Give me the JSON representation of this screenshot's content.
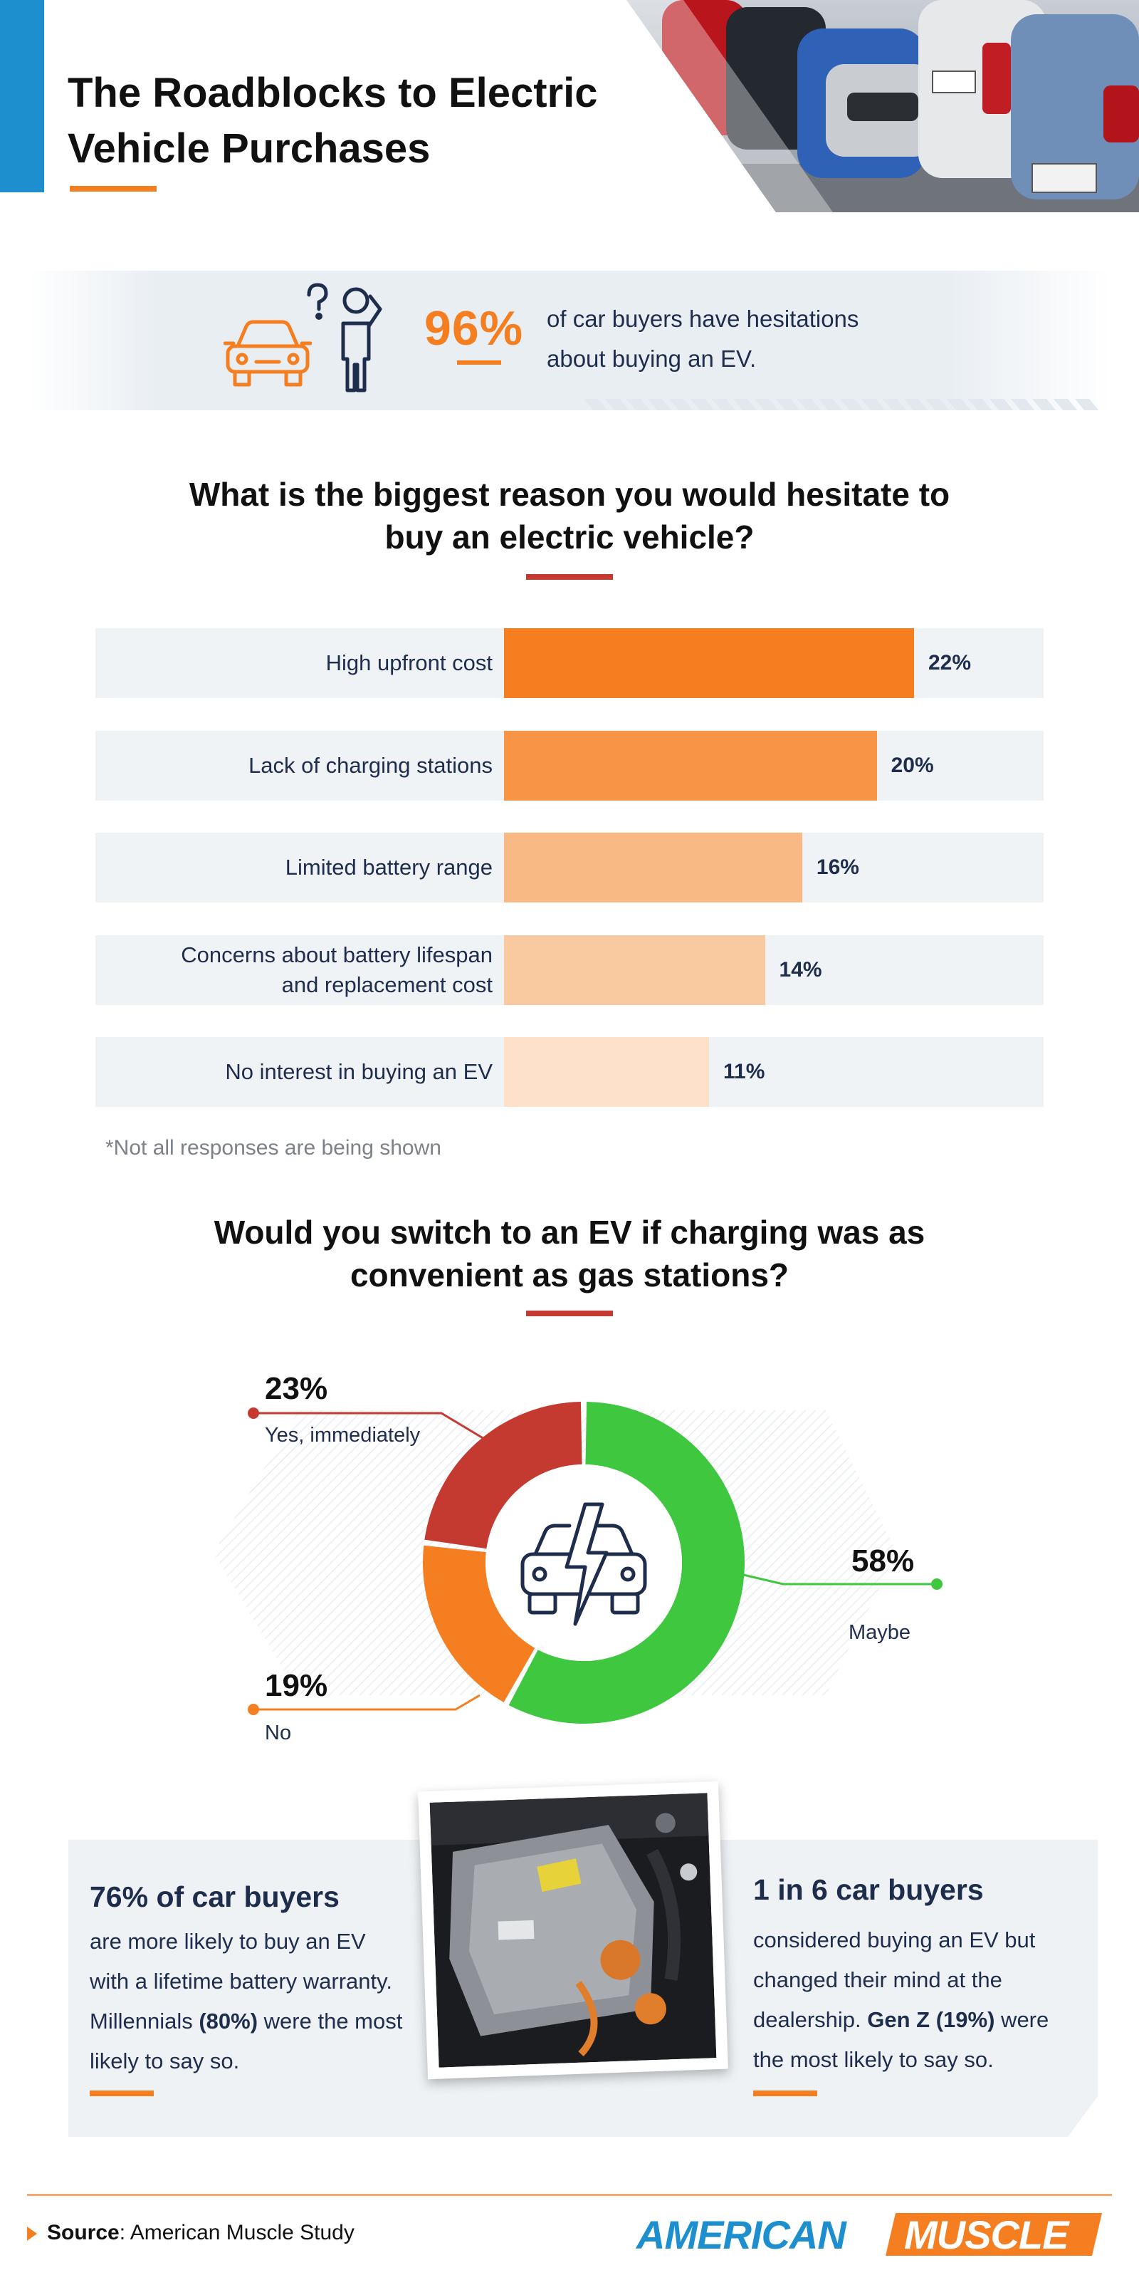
{
  "header": {
    "title_line1": "The Roadblocks to Electric",
    "title_line2": "Vehicle Purchases"
  },
  "stat_banner": {
    "percent": "96%",
    "text_line1": "of car buyers have hesitations",
    "text_line2": "about buying an EV.",
    "icons": [
      "car-icon",
      "confused-person-icon"
    ]
  },
  "bar_section": {
    "heading_line1": "What is the biggest reason you would hesitate to",
    "heading_line2": "buy an electric vehicle?",
    "footnote": "*Not all responses are being shown"
  },
  "donut_section": {
    "heading_line1": "Would you switch to an EV if charging was as",
    "heading_line2": "convenient as gas stations?",
    "center_icon": "electric-car-bolt-icon"
  },
  "chart_data": [
    {
      "type": "bar",
      "orientation": "horizontal",
      "title": "What is the biggest reason you would hesitate to buy an electric vehicle?",
      "categories": [
        "High upfront cost",
        "Lack of charging stations",
        "Limited battery range",
        "Concerns about battery lifespan and replacement cost",
        "No interest in buying an EV"
      ],
      "values": [
        22,
        20,
        16,
        14,
        11
      ],
      "value_labels": [
        "22%",
        "20%",
        "16%",
        "14%",
        "11%"
      ],
      "label_lines": [
        [
          "High upfront cost"
        ],
        [
          "Lack of charging stations"
        ],
        [
          "Limited battery range"
        ],
        [
          "Concerns about battery lifespan",
          "and replacement cost"
        ],
        [
          "No interest in buying an EV"
        ]
      ],
      "colors": [
        "#f47e20",
        "#f79446",
        "#f8b985",
        "#f9c9a0",
        "#fde1ca"
      ],
      "xlim": [
        0,
        22
      ]
    },
    {
      "type": "pie",
      "style": "donut",
      "title": "Would you switch to an EV if charging was as convenient as gas stations?",
      "slices": [
        {
          "label": "Maybe",
          "value": 58,
          "value_label": "58%",
          "color": "#3ec73f"
        },
        {
          "label": "No",
          "value": 19,
          "value_label": "19%",
          "color": "#f47e20"
        },
        {
          "label": "Yes, immediately",
          "value": 23,
          "value_label": "23%",
          "color": "#c43a31"
        }
      ]
    }
  ],
  "bottom_panel": {
    "left": {
      "headline": "76% of car buyers",
      "line1": "are more likely to buy an EV",
      "line2": "with a lifetime battery warranty.",
      "line3_a": "Millennials ",
      "line3_b": "(80%)",
      "line3_c": " were the most",
      "line4": "likely to say so."
    },
    "right": {
      "headline": "1 in 6 car buyers",
      "line1": "considered buying an EV but",
      "line2": "changed their mind at the",
      "line3_a": "dealership. ",
      "line3_b": "Gen Z (19%)",
      "line3_c": " were",
      "line4": "the most likely to say so."
    }
  },
  "footer": {
    "source_label": "Source",
    "source_text": ": American Muscle Study",
    "logo_part1": "AMERICAN",
    "logo_part2": "MUSCLE"
  },
  "colors": {
    "accent_orange": "#f47e20",
    "accent_blue": "#1d8fcf",
    "accent_red": "#c43a31",
    "accent_green": "#3ec73f",
    "navy_text": "#1f2d4d"
  }
}
